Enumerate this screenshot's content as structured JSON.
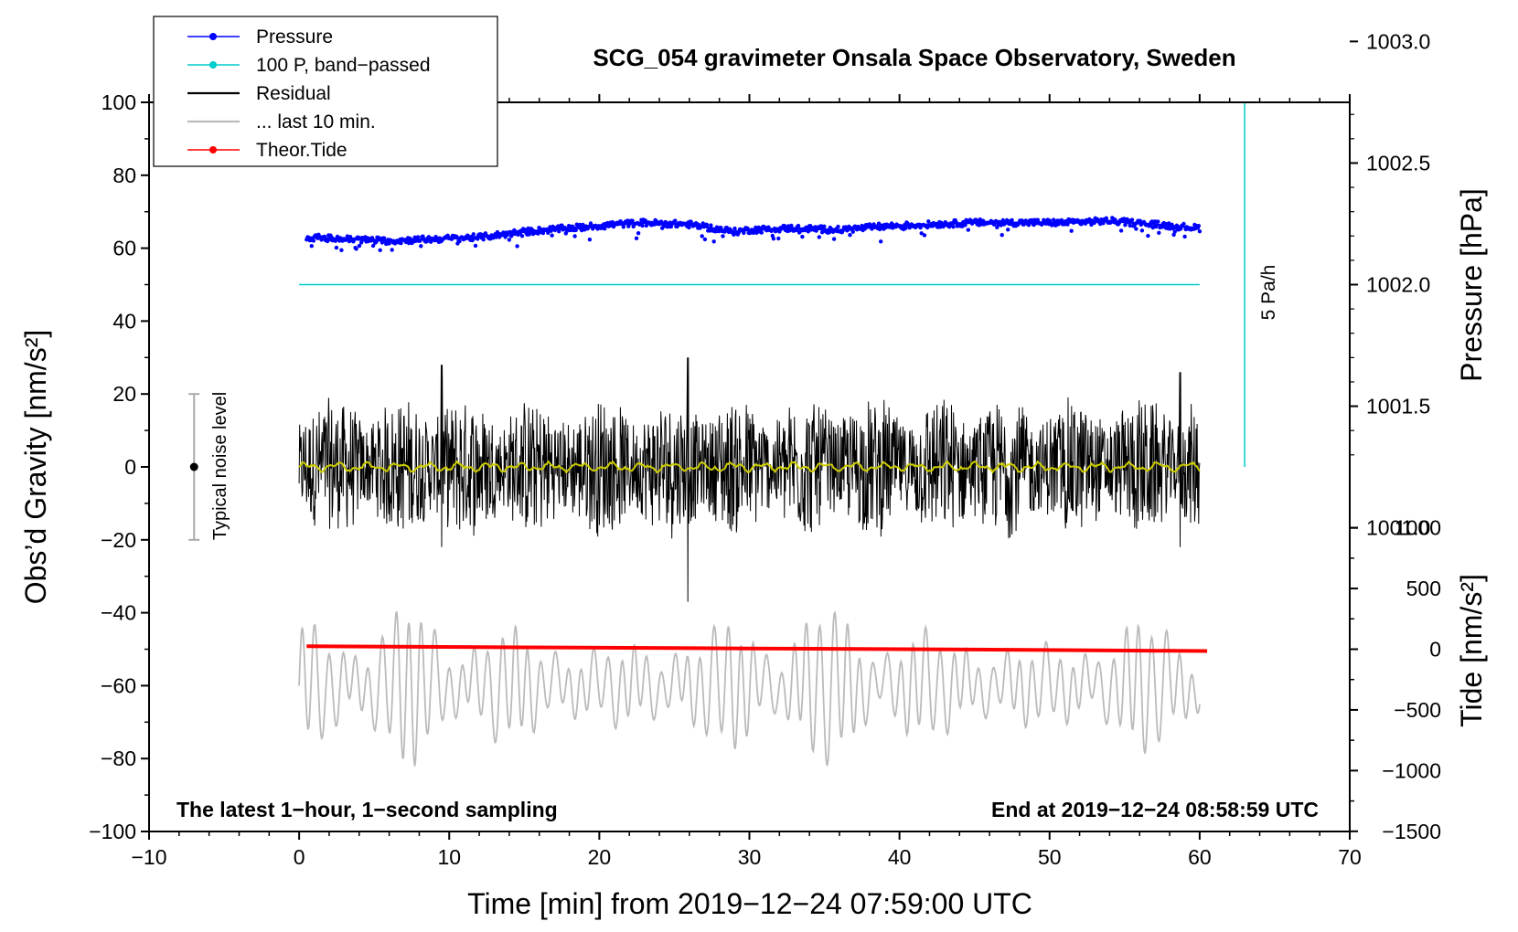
{
  "chart_data": {
    "type": "line",
    "title": "SCG_054 gravimeter Onsala Space Observatory, Sweden",
    "xlabel": "Time [min] from 2019−12−24 07:59:00 UTC",
    "ylabel_left": "Obs’d Gravity [nm/s²]",
    "ylabel_right_pressure": "Pressure [hPa]",
    "ylabel_right_tide": "Tide [nm/s²]",
    "xlim": [
      -10,
      70
    ],
    "ylim_left": [
      -100,
      100
    ],
    "x_ticks": [
      "−10",
      "0",
      "10",
      "20",
      "30",
      "40",
      "50",
      "60",
      "70"
    ],
    "x_tick_values": [
      -10,
      0,
      10,
      20,
      30,
      40,
      50,
      60,
      70
    ],
    "y_ticks_left": [
      "100",
      "80",
      "60",
      "40",
      "20",
      "0",
      "−20",
      "−40",
      "−60",
      "−80",
      "−100"
    ],
    "y_tick_values_left": [
      100,
      80,
      60,
      40,
      20,
      0,
      -20,
      -40,
      -60,
      -80,
      -100
    ],
    "pressure_ticks": [
      "1003.0",
      "1002.5",
      "1002.0",
      "1001.5",
      "1001.0"
    ],
    "pressure_tick_values": [
      1003.0,
      1002.5,
      1002.0,
      1001.5,
      1001.0
    ],
    "pressure_map": {
      "ref_hpa": 1002.0,
      "ref_gravity": 50,
      "gravity_per_hpa": 66.7
    },
    "tide_ticks": [
      "1000",
      "500",
      "0",
      "−500",
      "−1000",
      "−1500"
    ],
    "tide_tick_values": [
      1000,
      500,
      0,
      -500,
      -1000,
      -1500
    ],
    "tide_map": {
      "ref_tide": 0,
      "ref_gravity": -50,
      "gravity_per_unit": 0.0333
    },
    "legend": [
      {
        "label": "Pressure",
        "color": "#0000ff",
        "style": "line-dot"
      },
      {
        "label": "100 P, band−passed",
        "color": "#00cccc",
        "style": "line-dot"
      },
      {
        "label": "Residual",
        "color": "#000000",
        "style": "line"
      },
      {
        "label": "... last 10 min.",
        "color": "#bbbbbb",
        "style": "line"
      },
      {
        "label": "Theor.Tide",
        "color": "#ff0000",
        "style": "line-dot"
      }
    ],
    "annotations": {
      "rate_label": "5 Pa/h",
      "noise_label": "Typical noise level",
      "noise_level": {
        "x": -7,
        "center": 0,
        "range": [
          -20,
          20
        ]
      },
      "bottom_left": "The latest 1−hour, 1−second sampling",
      "bottom_right": "End at 2019−12−24 08:58:59 UTC"
    },
    "series": [
      {
        "name": "Pressure",
        "color": "#0000ff",
        "x": [
          0.5,
          3,
          6,
          9,
          12,
          15,
          18,
          21,
          23,
          26,
          29,
          30,
          33,
          36,
          39,
          42,
          45,
          48,
          51,
          54,
          57,
          60
        ],
        "y": [
          63,
          62.5,
          62,
          62.5,
          63,
          64.5,
          65.5,
          66.5,
          67,
          66.5,
          64.5,
          65,
          65.5,
          65,
          66,
          66.5,
          67,
          67,
          67,
          67.5,
          66.5,
          65.5
        ]
      },
      {
        "name": "100 P, band-passed",
        "color": "#00cccc",
        "x": [
          0,
          60
        ],
        "y": [
          50,
          50
        ]
      },
      {
        "name": "Theor.Tide",
        "color": "#ff0000",
        "x": [
          0.5,
          15,
          30,
          45,
          60.5
        ],
        "y": [
          -49.2,
          -49.5,
          -49.8,
          -50.1,
          -50.5
        ]
      },
      {
        "name": "Residual",
        "color": "#000000",
        "x_range": [
          0,
          60
        ],
        "envelope": 20,
        "spikes": [
          {
            "x": 25.9,
            "max": 30,
            "min": -37
          },
          {
            "x": 9.5,
            "max": 28,
            "min": -22
          },
          {
            "x": 58.7,
            "max": 26,
            "min": -22
          }
        ]
      },
      {
        "name": "Residual smoothed",
        "color": "#cccc00",
        "x_range": [
          0,
          60
        ],
        "y": 0
      },
      {
        "name": "... last 10 min.",
        "color": "#bbbbbb",
        "x_range": [
          0,
          60
        ],
        "center": -60,
        "range": [
          -84,
          -36
        ]
      }
    ]
  }
}
